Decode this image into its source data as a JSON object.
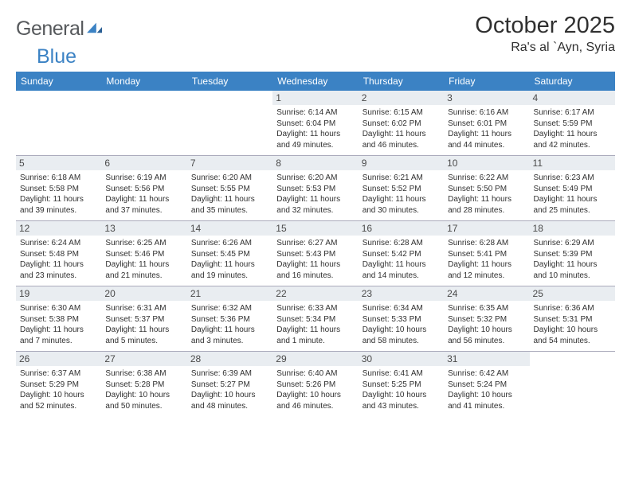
{
  "brand": {
    "part1": "General",
    "part2": "Blue"
  },
  "title": "October 2025",
  "location": "Ra's al `Ayn, Syria",
  "colors": {
    "header_bg": "#3b82c4",
    "header_text": "#ffffff",
    "daynum_bg": "#e9edf1",
    "border": "#aab3bd",
    "brand_gray": "#56595c",
    "brand_blue": "#3b82c4"
  },
  "typography": {
    "title_fontsize": 29,
    "location_fontsize": 16,
    "th_fontsize": 12,
    "daynum_fontsize": 12,
    "info_fontsize": 10
  },
  "weekdays": [
    "Sunday",
    "Monday",
    "Tuesday",
    "Wednesday",
    "Thursday",
    "Friday",
    "Saturday"
  ],
  "weeks": [
    [
      null,
      null,
      null,
      {
        "day": "1",
        "sunrise": "Sunrise: 6:14 AM",
        "sunset": "Sunset: 6:04 PM",
        "daylight": "Daylight: 11 hours and 49 minutes."
      },
      {
        "day": "2",
        "sunrise": "Sunrise: 6:15 AM",
        "sunset": "Sunset: 6:02 PM",
        "daylight": "Daylight: 11 hours and 46 minutes."
      },
      {
        "day": "3",
        "sunrise": "Sunrise: 6:16 AM",
        "sunset": "Sunset: 6:01 PM",
        "daylight": "Daylight: 11 hours and 44 minutes."
      },
      {
        "day": "4",
        "sunrise": "Sunrise: 6:17 AM",
        "sunset": "Sunset: 5:59 PM",
        "daylight": "Daylight: 11 hours and 42 minutes."
      }
    ],
    [
      {
        "day": "5",
        "sunrise": "Sunrise: 6:18 AM",
        "sunset": "Sunset: 5:58 PM",
        "daylight": "Daylight: 11 hours and 39 minutes."
      },
      {
        "day": "6",
        "sunrise": "Sunrise: 6:19 AM",
        "sunset": "Sunset: 5:56 PM",
        "daylight": "Daylight: 11 hours and 37 minutes."
      },
      {
        "day": "7",
        "sunrise": "Sunrise: 6:20 AM",
        "sunset": "Sunset: 5:55 PM",
        "daylight": "Daylight: 11 hours and 35 minutes."
      },
      {
        "day": "8",
        "sunrise": "Sunrise: 6:20 AM",
        "sunset": "Sunset: 5:53 PM",
        "daylight": "Daylight: 11 hours and 32 minutes."
      },
      {
        "day": "9",
        "sunrise": "Sunrise: 6:21 AM",
        "sunset": "Sunset: 5:52 PM",
        "daylight": "Daylight: 11 hours and 30 minutes."
      },
      {
        "day": "10",
        "sunrise": "Sunrise: 6:22 AM",
        "sunset": "Sunset: 5:50 PM",
        "daylight": "Daylight: 11 hours and 28 minutes."
      },
      {
        "day": "11",
        "sunrise": "Sunrise: 6:23 AM",
        "sunset": "Sunset: 5:49 PM",
        "daylight": "Daylight: 11 hours and 25 minutes."
      }
    ],
    [
      {
        "day": "12",
        "sunrise": "Sunrise: 6:24 AM",
        "sunset": "Sunset: 5:48 PM",
        "daylight": "Daylight: 11 hours and 23 minutes."
      },
      {
        "day": "13",
        "sunrise": "Sunrise: 6:25 AM",
        "sunset": "Sunset: 5:46 PM",
        "daylight": "Daylight: 11 hours and 21 minutes."
      },
      {
        "day": "14",
        "sunrise": "Sunrise: 6:26 AM",
        "sunset": "Sunset: 5:45 PM",
        "daylight": "Daylight: 11 hours and 19 minutes."
      },
      {
        "day": "15",
        "sunrise": "Sunrise: 6:27 AM",
        "sunset": "Sunset: 5:43 PM",
        "daylight": "Daylight: 11 hours and 16 minutes."
      },
      {
        "day": "16",
        "sunrise": "Sunrise: 6:28 AM",
        "sunset": "Sunset: 5:42 PM",
        "daylight": "Daylight: 11 hours and 14 minutes."
      },
      {
        "day": "17",
        "sunrise": "Sunrise: 6:28 AM",
        "sunset": "Sunset: 5:41 PM",
        "daylight": "Daylight: 11 hours and 12 minutes."
      },
      {
        "day": "18",
        "sunrise": "Sunrise: 6:29 AM",
        "sunset": "Sunset: 5:39 PM",
        "daylight": "Daylight: 11 hours and 10 minutes."
      }
    ],
    [
      {
        "day": "19",
        "sunrise": "Sunrise: 6:30 AM",
        "sunset": "Sunset: 5:38 PM",
        "daylight": "Daylight: 11 hours and 7 minutes."
      },
      {
        "day": "20",
        "sunrise": "Sunrise: 6:31 AM",
        "sunset": "Sunset: 5:37 PM",
        "daylight": "Daylight: 11 hours and 5 minutes."
      },
      {
        "day": "21",
        "sunrise": "Sunrise: 6:32 AM",
        "sunset": "Sunset: 5:36 PM",
        "daylight": "Daylight: 11 hours and 3 minutes."
      },
      {
        "day": "22",
        "sunrise": "Sunrise: 6:33 AM",
        "sunset": "Sunset: 5:34 PM",
        "daylight": "Daylight: 11 hours and 1 minute."
      },
      {
        "day": "23",
        "sunrise": "Sunrise: 6:34 AM",
        "sunset": "Sunset: 5:33 PM",
        "daylight": "Daylight: 10 hours and 58 minutes."
      },
      {
        "day": "24",
        "sunrise": "Sunrise: 6:35 AM",
        "sunset": "Sunset: 5:32 PM",
        "daylight": "Daylight: 10 hours and 56 minutes."
      },
      {
        "day": "25",
        "sunrise": "Sunrise: 6:36 AM",
        "sunset": "Sunset: 5:31 PM",
        "daylight": "Daylight: 10 hours and 54 minutes."
      }
    ],
    [
      {
        "day": "26",
        "sunrise": "Sunrise: 6:37 AM",
        "sunset": "Sunset: 5:29 PM",
        "daylight": "Daylight: 10 hours and 52 minutes."
      },
      {
        "day": "27",
        "sunrise": "Sunrise: 6:38 AM",
        "sunset": "Sunset: 5:28 PM",
        "daylight": "Daylight: 10 hours and 50 minutes."
      },
      {
        "day": "28",
        "sunrise": "Sunrise: 6:39 AM",
        "sunset": "Sunset: 5:27 PM",
        "daylight": "Daylight: 10 hours and 48 minutes."
      },
      {
        "day": "29",
        "sunrise": "Sunrise: 6:40 AM",
        "sunset": "Sunset: 5:26 PM",
        "daylight": "Daylight: 10 hours and 46 minutes."
      },
      {
        "day": "30",
        "sunrise": "Sunrise: 6:41 AM",
        "sunset": "Sunset: 5:25 PM",
        "daylight": "Daylight: 10 hours and 43 minutes."
      },
      {
        "day": "31",
        "sunrise": "Sunrise: 6:42 AM",
        "sunset": "Sunset: 5:24 PM",
        "daylight": "Daylight: 10 hours and 41 minutes."
      },
      null
    ]
  ]
}
